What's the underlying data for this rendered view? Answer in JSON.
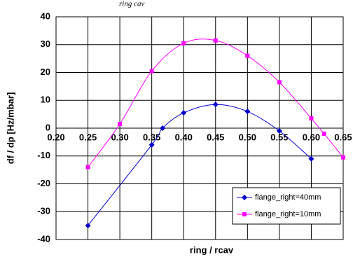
{
  "chart_data": {
    "type": "line",
    "title": "ring     cav",
    "xlabel": "ring / rcav",
    "ylabel": "df / dp [Hz/mbar]",
    "xlim": [
      0.2,
      0.65
    ],
    "ylim": [
      -40,
      40
    ],
    "xticks": [
      "0.20",
      "0.25",
      "0.30",
      "0.35",
      "0.40",
      "0.45",
      "0.50",
      "0.55",
      "0.60",
      "0.65"
    ],
    "yticks": [
      "-40",
      "-30",
      "-20",
      "-10",
      "0",
      "10",
      "20",
      "30",
      "40"
    ],
    "grid": true,
    "legend_position": "bottom-right",
    "series": [
      {
        "name": "flange_right=40mm",
        "color": "#0000cc",
        "marker": "diamond",
        "x": [
          0.25,
          0.35,
          0.367,
          0.4,
          0.45,
          0.5,
          0.55,
          0.6
        ],
        "y": [
          -35,
          -6,
          0,
          5.5,
          8.5,
          6,
          -1,
          -11
        ]
      },
      {
        "name": "flange_right=10mm",
        "color": "#ff00ff",
        "marker": "square",
        "x": [
          0.25,
          0.3,
          0.35,
          0.4,
          0.45,
          0.5,
          0.55,
          0.6,
          0.62,
          0.65
        ],
        "y": [
          -14,
          1.5,
          20.5,
          30.5,
          31.5,
          26,
          16.5,
          3.5,
          -2,
          -10.5
        ]
      }
    ]
  }
}
